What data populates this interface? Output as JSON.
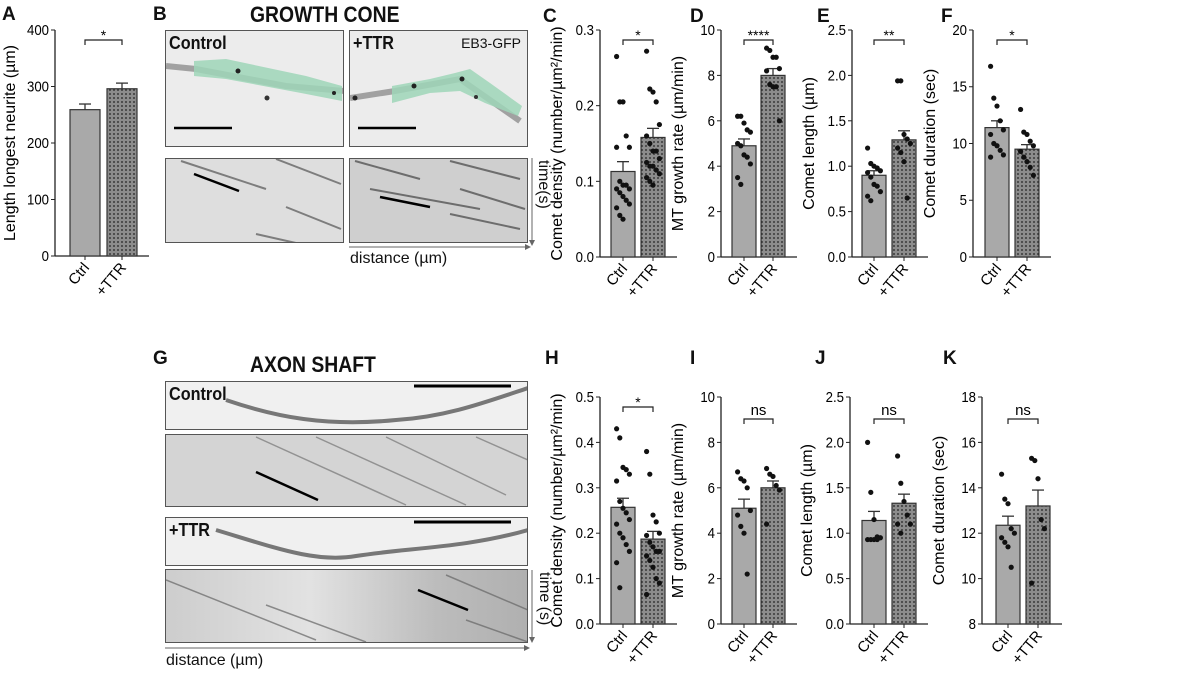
{
  "panels": {
    "A": "A",
    "B": "B",
    "C": "C",
    "D": "D",
    "E": "E",
    "F": "F",
    "G": "G",
    "H": "H",
    "I": "I",
    "J": "J",
    "K": "K"
  },
  "growth_cone": {
    "title": "GROWTH CONE",
    "control_label": "Control",
    "ttr_label": "+TTR",
    "marker_label": "EB3-GFP",
    "time_label": "time(s)",
    "distance_label": "distance (µm)",
    "highlight_color": "#9fd6b8"
  },
  "axon_shaft": {
    "title": "AXON SHAFT",
    "control_label": "Control",
    "ttr_label": "+TTR",
    "time_label": "time (s)",
    "distance_label": "distance (µm)"
  },
  "colors": {
    "ctrl_fill": "#a9a9a9",
    "ttr_fill": "#8c8c8c",
    "dots": "#111111"
  },
  "chart_data": [
    {
      "id": "A",
      "type": "bar",
      "categories": [
        "Ctrl",
        "+TTR"
      ],
      "ylabel": "Length longest neurite (µm)",
      "ylim": [
        0,
        400
      ],
      "yticks": [
        "0",
        "100",
        "200",
        "300",
        "400"
      ],
      "values": [
        259,
        296
      ],
      "sem": [
        10,
        10
      ],
      "significance": "*",
      "points": [
        [],
        []
      ]
    },
    {
      "id": "C",
      "type": "bar",
      "categories": [
        "Ctrl",
        "+TTR"
      ],
      "ylabel": "Comet density (number/µm²/min)",
      "ylim": [
        0,
        0.3
      ],
      "yticks": [
        "0.0",
        "0.1",
        "0.2",
        "0.3"
      ],
      "values": [
        0.113,
        0.158
      ],
      "sem": [
        0.013,
        0.012
      ],
      "significance": "*",
      "points": [
        [
          0.265,
          0.205,
          0.205,
          0.16,
          0.145,
          0.145,
          0.1,
          0.095,
          0.095,
          0.09,
          0.09,
          0.085,
          0.08,
          0.075,
          0.07,
          0.065,
          0.055,
          0.05
        ],
        [
          0.272,
          0.222,
          0.218,
          0.205,
          0.175,
          0.16,
          0.15,
          0.14,
          0.14,
          0.13,
          0.125,
          0.12,
          0.12,
          0.115,
          0.11,
          0.105,
          0.1,
          0.095
        ]
      ]
    },
    {
      "id": "D",
      "type": "bar",
      "categories": [
        "Ctrl",
        "+TTR"
      ],
      "ylabel": "MT growth rate (µm/min)",
      "ylim": [
        0,
        10
      ],
      "yticks": [
        "0",
        "2",
        "4",
        "6",
        "8",
        "10"
      ],
      "values": [
        4.9,
        8.0
      ],
      "sem": [
        0.3,
        0.3
      ],
      "significance": "****",
      "points": [
        [
          6.2,
          6.2,
          5.9,
          5.6,
          5.5,
          5.0,
          4.9,
          4.5,
          4.4,
          4.1,
          3.5,
          3.2
        ],
        [
          9.2,
          9.1,
          8.8,
          8.8,
          8.3,
          8.2,
          7.6,
          7.5,
          7.5,
          6.0
        ]
      ]
    },
    {
      "id": "E",
      "type": "bar",
      "categories": [
        "Ctrl",
        "+TTR"
      ],
      "ylabel": "Comet length (µm)",
      "ylim": [
        0,
        2.5
      ],
      "yticks": [
        "0.0",
        "0.5",
        "1.0",
        "1.5",
        "2.0",
        "2.5"
      ],
      "values": [
        0.9,
        1.29
      ],
      "sem": [
        0.05,
        0.1
      ],
      "significance": "**",
      "points": [
        [
          1.2,
          1.03,
          1.0,
          0.98,
          0.95,
          0.93,
          0.88,
          0.8,
          0.78,
          0.72,
          0.67,
          0.62
        ],
        [
          1.94,
          1.94,
          1.35,
          1.3,
          1.25,
          1.2,
          1.15,
          1.05,
          0.65
        ]
      ]
    },
    {
      "id": "F",
      "type": "bar",
      "categories": [
        "Ctrl",
        "+TTR"
      ],
      "ylabel": "Comet duration (sec)",
      "ylim": [
        0,
        20
      ],
      "yticks": [
        "0",
        "5",
        "10",
        "15",
        "20"
      ],
      "values": [
        11.4,
        9.5
      ],
      "sem": [
        0.6,
        0.4
      ],
      "significance": "*",
      "points": [
        [
          16.8,
          14.0,
          13.3,
          12.0,
          11.2,
          10.8,
          10.0,
          9.8,
          9.4,
          9.0,
          8.8
        ],
        [
          13.0,
          11.0,
          10.8,
          10.2,
          9.8,
          9.3,
          8.8,
          8.4,
          7.9,
          7.2
        ]
      ]
    },
    {
      "id": "H",
      "type": "bar",
      "categories": [
        "Ctrl",
        "+TTR"
      ],
      "ylabel": "Comet density (number/µm²/min)",
      "ylim": [
        0,
        0.5
      ],
      "yticks": [
        "0.0",
        "0.1",
        "0.2",
        "0.3",
        "0.4",
        "0.5"
      ],
      "values": [
        0.257,
        0.187
      ],
      "sem": [
        0.02,
        0.017
      ],
      "significance": "*",
      "points": [
        [
          0.43,
          0.41,
          0.345,
          0.34,
          0.33,
          0.315,
          0.27,
          0.255,
          0.245,
          0.23,
          0.22,
          0.2,
          0.19,
          0.175,
          0.16,
          0.135,
          0.08
        ],
        [
          0.38,
          0.33,
          0.24,
          0.225,
          0.2,
          0.195,
          0.18,
          0.17,
          0.16,
          0.16,
          0.15,
          0.14,
          0.125,
          0.1,
          0.09,
          0.065
        ]
      ]
    },
    {
      "id": "I",
      "type": "bar",
      "categories": [
        "Ctrl",
        "+TTR"
      ],
      "ylabel": "MT growth rate (µm/min)",
      "ylim": [
        0,
        10
      ],
      "yticks": [
        "0",
        "2",
        "4",
        "6",
        "8",
        "10"
      ],
      "values": [
        5.1,
        6.0
      ],
      "sem": [
        0.4,
        0.3
      ],
      "significance": "ns",
      "points": [
        [
          6.7,
          6.4,
          6.3,
          6.0,
          5.0,
          4.8,
          4.3,
          4.0,
          2.2
        ],
        [
          6.85,
          6.6,
          6.5,
          6.1,
          5.9,
          4.4
        ]
      ]
    },
    {
      "id": "J",
      "type": "bar",
      "categories": [
        "Ctrl",
        "+TTR"
      ],
      "ylabel": "Comet length (µm)",
      "ylim": [
        0,
        2.5
      ],
      "yticks": [
        "0.0",
        "0.5",
        "1.0",
        "1.5",
        "2.0",
        "2.5"
      ],
      "values": [
        1.14,
        1.33
      ],
      "sem": [
        0.1,
        0.1
      ],
      "significance": "ns",
      "points": [
        [
          2.0,
          1.45,
          1.15,
          0.96,
          0.95,
          0.93,
          0.93,
          0.93,
          0.93
        ],
        [
          1.85,
          1.55,
          1.35,
          1.2,
          1.1,
          1.1,
          1.0
        ]
      ]
    },
    {
      "id": "K",
      "type": "bar",
      "categories": [
        "Ctrl",
        "+TTR"
      ],
      "ylabel": "Comet duration (sec)",
      "ylim": [
        8,
        18
      ],
      "yticks": [
        "8",
        "10",
        "12",
        "14",
        "16",
        "18"
      ],
      "values": [
        12.35,
        13.2
      ],
      "sem": [
        0.4,
        0.7
      ],
      "significance": "ns",
      "points": [
        [
          14.6,
          13.5,
          13.3,
          12.2,
          12.0,
          11.8,
          11.6,
          11.4,
          10.5
        ],
        [
          15.3,
          15.2,
          14.4,
          12.6,
          12.2,
          9.8
        ]
      ]
    }
  ]
}
